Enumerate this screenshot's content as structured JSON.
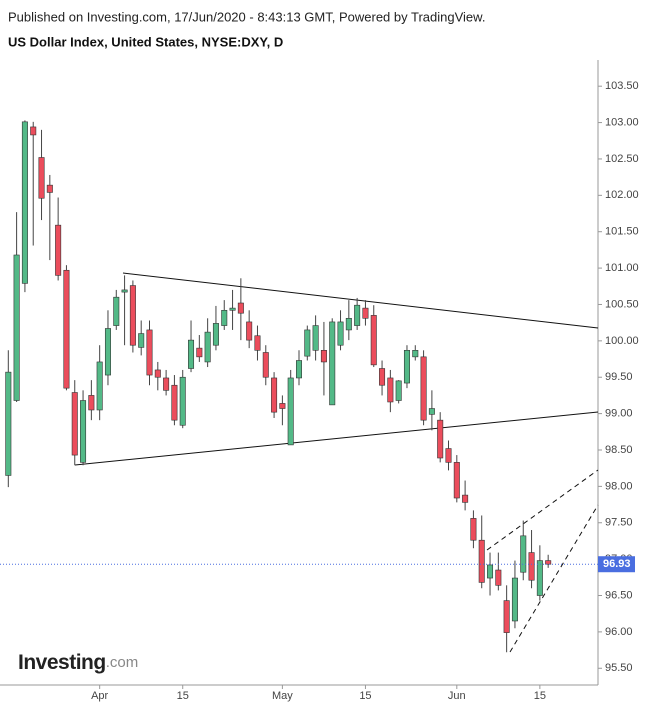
{
  "header": {
    "published": "Published on Investing.com, 17/Jun/2020 - 8:43:13 GMT, Powered by TradingView."
  },
  "logo": {
    "brand": "Investing",
    "suffix": ".com"
  },
  "chart_data": {
    "type": "candlestick",
    "title": "US Dollar Index, United States, NYSE:DXY, D",
    "up_color": "#53b987",
    "down_color": "#eb4d5c",
    "x": [
      0,
      1,
      2,
      3,
      4,
      5,
      6,
      7,
      8,
      9,
      10,
      11,
      12,
      13,
      14,
      15,
      16,
      17,
      18,
      19,
      20,
      21,
      22,
      23,
      24,
      25,
      26,
      27,
      28,
      29,
      30,
      31,
      32,
      33,
      34,
      35,
      36,
      37,
      38,
      39,
      40,
      41,
      42,
      43,
      44,
      45,
      46,
      47,
      48,
      49,
      50,
      51,
      52,
      53,
      54,
      55,
      56,
      57,
      58,
      59,
      60,
      61,
      62,
      63,
      64,
      65
    ],
    "open": [
      98.15,
      99.18,
      100.79,
      102.94,
      102.52,
      102.14,
      101.59,
      100.97,
      99.29,
      98.33,
      99.25,
      99.05,
      99.53,
      100.21,
      100.67,
      100.76,
      99.91,
      100.15,
      99.6,
      99.49,
      99.39,
      98.84,
      99.62,
      99.9,
      99.71,
      99.94,
      100.21,
      100.42,
      100.52,
      100.26,
      100.07,
      99.84,
      99.49,
      99.14,
      98.57,
      99.49,
      99.79,
      99.87,
      99.87,
      99.12,
      99.94,
      100.15,
      100.21,
      100.45,
      100.35,
      99.62,
      99.49,
      99.18,
      99.42,
      99.78,
      99.78,
      98.99,
      98.91,
      98.52,
      98.33,
      97.88,
      97.56,
      97.26,
      96.74,
      96.85,
      96.43,
      96.15,
      96.82,
      97.09,
      96.5,
      96.98
    ],
    "high": [
      99.87,
      101.77,
      103.03,
      103.01,
      102.9,
      102.28,
      101.97,
      101.04,
      99.46,
      99.32,
      99.46,
      99.94,
      100.42,
      100.7,
      100.9,
      100.83,
      100.28,
      100.28,
      99.71,
      99.6,
      99.53,
      99.6,
      100.28,
      100.08,
      100.31,
      100.48,
      100.56,
      100.7,
      100.86,
      100.42,
      100.21,
      99.94,
      99.57,
      99.25,
      99.6,
      99.87,
      100.21,
      100.35,
      100.26,
      100.31,
      100.42,
      100.56,
      100.59,
      100.56,
      100.49,
      99.73,
      99.6,
      99.46,
      99.94,
      99.94,
      99.87,
      99.32,
      99.02,
      98.63,
      98.43,
      98.08,
      97.67,
      97.6,
      97.09,
      97.09,
      96.64,
      96.98,
      97.53,
      97.4,
      97.19,
      97.06
    ],
    "low": [
      97.99,
      99.16,
      100.67,
      101.31,
      101.66,
      101.11,
      100.83,
      99.32,
      98.29,
      98.29,
      98.91,
      98.91,
      99.39,
      100.15,
      99.94,
      99.84,
      99.8,
      99.39,
      99.32,
      99.25,
      98.84,
      98.8,
      99.57,
      99.71,
      99.64,
      99.87,
      100.15,
      100.15,
      100.01,
      99.9,
      99.73,
      99.39,
      98.94,
      98.84,
      98.57,
      99.39,
      99.73,
      99.73,
      99.25,
      99.12,
      99.87,
      100.01,
      100.15,
      100.21,
      99.64,
      99.25,
      99.02,
      99.14,
      99.35,
      99.73,
      98.84,
      98.77,
      98.33,
      98.22,
      97.78,
      97.67,
      97.15,
      96.6,
      96.5,
      96.57,
      95.72,
      96.05,
      96.71,
      96.6,
      96.43,
      96.88
    ],
    "close": [
      99.57,
      101.18,
      103.01,
      102.83,
      101.96,
      102.04,
      100.9,
      99.35,
      98.43,
      99.18,
      99.05,
      99.71,
      100.17,
      100.6,
      100.7,
      99.94,
      100.1,
      99.53,
      99.5,
      99.32,
      98.91,
      99.5,
      100.01,
      99.78,
      100.12,
      100.24,
      100.42,
      100.45,
      100.38,
      100.01,
      99.87,
      99.5,
      99.02,
      99.07,
      99.49,
      99.73,
      100.15,
      100.21,
      99.71,
      100.26,
      100.26,
      100.31,
      100.49,
      100.31,
      99.67,
      99.39,
      99.16,
      99.45,
      99.87,
      99.87,
      98.91,
      99.07,
      98.39,
      98.33,
      97.84,
      97.78,
      97.26,
      96.68,
      96.92,
      96.64,
      95.99,
      96.74,
      97.32,
      96.71,
      96.98,
      96.93
    ],
    "last_price": 96.93,
    "last_price_color": "#4a6ee0",
    "xlim": [
      -1,
      71
    ],
    "xticks": [
      {
        "value": 11,
        "label": "Apr"
      },
      {
        "value": 21,
        "label": "15"
      },
      {
        "value": 33,
        "label": "May"
      },
      {
        "value": 43,
        "label": "15"
      },
      {
        "value": 54,
        "label": "Jun"
      },
      {
        "value": 64,
        "label": "15"
      }
    ],
    "ylim": [
      95.27,
      103.86
    ],
    "yticks": [
      {
        "value": 95.5,
        "label": "95.50"
      },
      {
        "value": 96,
        "label": "96.00"
      },
      {
        "value": 96.5,
        "label": "96.50"
      },
      {
        "value": 97,
        "label": "97.00"
      },
      {
        "value": 97.5,
        "label": "97.50"
      },
      {
        "value": 98,
        "label": "98.00"
      },
      {
        "value": 98.5,
        "label": "98.50"
      },
      {
        "value": 99,
        "label": "99.00"
      },
      {
        "value": 99.5,
        "label": "99.50"
      },
      {
        "value": 100,
        "label": "100.00"
      },
      {
        "value": 100.5,
        "label": "100.50"
      },
      {
        "value": 101,
        "label": "101.00"
      },
      {
        "value": 101.5,
        "label": "101.50"
      },
      {
        "value": 102,
        "label": "102.00"
      },
      {
        "value": 102.5,
        "label": "102.50"
      },
      {
        "value": 103,
        "label": "103.00"
      },
      {
        "value": 103.5,
        "label": "103.50"
      }
    ],
    "grid": false
  }
}
